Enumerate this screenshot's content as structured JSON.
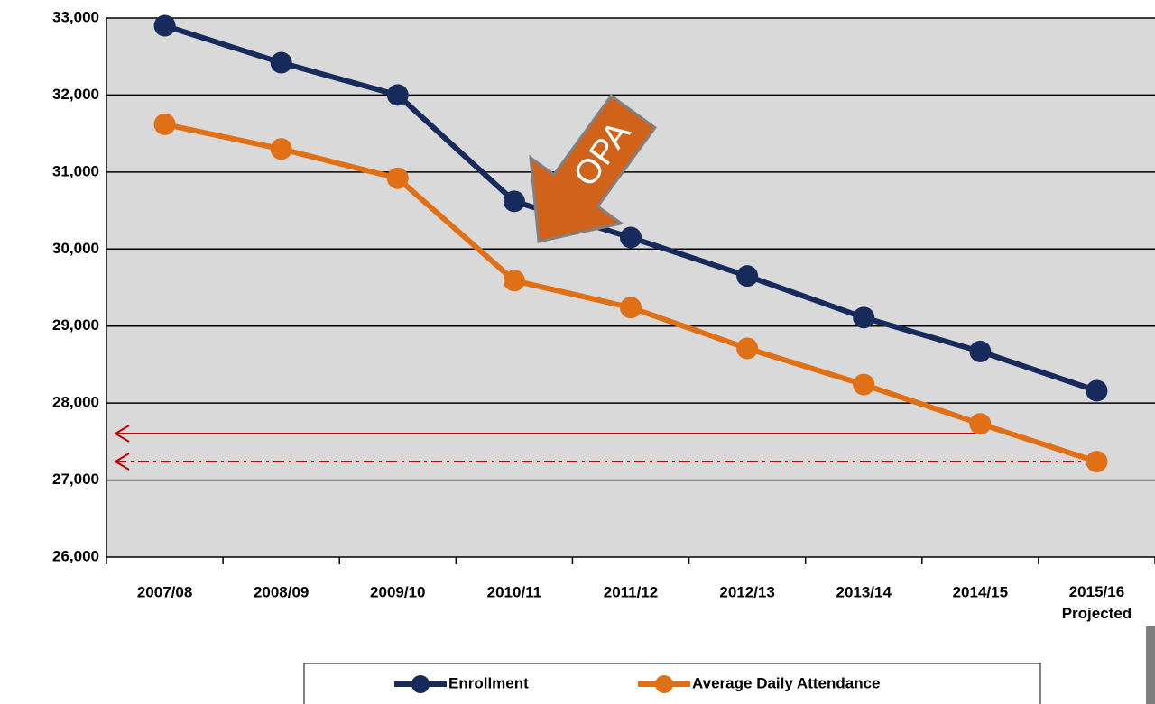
{
  "chart_data": {
    "type": "line",
    "categories": [
      "2007/08",
      "2008/09",
      "2009/10",
      "2010/11",
      "2011/12",
      "2012/13",
      "2013/14",
      "2014/15",
      "2015/16\nProjected"
    ],
    "series": [
      {
        "name": "Enrollment",
        "color": "#172a5c",
        "values": [
          32900,
          32420,
          32000,
          30620,
          30150,
          29650,
          29110,
          28670,
          28160
        ]
      },
      {
        "name": "Average Daily Attendance",
        "color": "#e07016",
        "values": [
          31620,
          31300,
          30920,
          29590,
          29240,
          28710,
          28240,
          27730,
          27240
        ]
      }
    ],
    "ylim": [
      26000,
      33000
    ],
    "yticks": [
      {
        "value": 26000,
        "label": "26,000"
      },
      {
        "value": 27000,
        "label": "27,000"
      },
      {
        "value": 28000,
        "label": "28,000"
      },
      {
        "value": 29000,
        "label": "29,000"
      },
      {
        "value": 30000,
        "label": "30,000"
      },
      {
        "value": 31000,
        "label": "31,000"
      },
      {
        "value": 32000,
        "label": "32,000"
      },
      {
        "value": 33000,
        "label": "33,000"
      }
    ],
    "grid": true,
    "annotations": [
      "OPA"
    ]
  }
}
